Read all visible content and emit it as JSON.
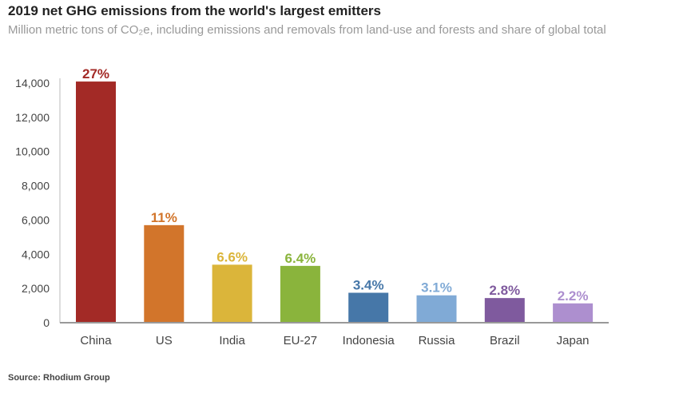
{
  "chart_data": {
    "type": "bar",
    "title": "2019 net GHG emissions from the world's largest emitters",
    "subtitle": "Million metric tons of CO₂e, including emissions and removals from land-use and forests and share of global total",
    "source": "Source: Rhodium Group",
    "xlabel": "",
    "ylabel": "",
    "ylim": [
      0,
      14000
    ],
    "yticks": [
      0,
      2000,
      4000,
      6000,
      8000,
      10000,
      12000,
      14000
    ],
    "ytick_labels": [
      "0",
      "2,000",
      "4,000",
      "6,000",
      "8,000",
      "10,000",
      "12,000",
      "14,000"
    ],
    "grid": false,
    "categories": [
      "China",
      "US",
      "India",
      "EU-27",
      "Indonesia",
      "Russia",
      "Brazil",
      "Japan"
    ],
    "values": [
      14090,
      5700,
      3390,
      3320,
      1750,
      1600,
      1440,
      1130
    ],
    "data_labels": [
      "27%",
      "11%",
      "6.6%",
      "6.4%",
      "3.4%",
      "3.1%",
      "2.8%",
      "2.2%"
    ],
    "colors": [
      "#a32a26",
      "#d2752b",
      "#dbb53a",
      "#8ab43c",
      "#4677a8",
      "#80aad6",
      "#7f5a9e",
      "#ad8fcf"
    ]
  }
}
